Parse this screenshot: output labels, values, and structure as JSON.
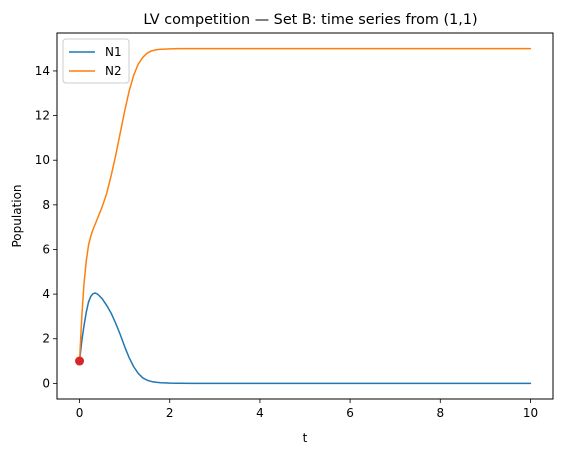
{
  "chart_data": {
    "type": "line",
    "title": "LV competition — Set B: time series from (1,1)",
    "xlabel": "t",
    "ylabel": "Population",
    "xlim": [
      -0.5,
      10.5
    ],
    "ylim": [
      -0.7,
      15.7
    ],
    "x_ticks": [
      0,
      2,
      4,
      6,
      8,
      10
    ],
    "y_ticks": [
      0,
      2,
      4,
      6,
      8,
      10,
      12,
      14
    ],
    "grid": false,
    "legend_position": "top-left",
    "series": [
      {
        "name": "N1",
        "color": "#1f77b4",
        "x": [
          0,
          0.05,
          0.1,
          0.15,
          0.2,
          0.25,
          0.3,
          0.35,
          0.4,
          0.5,
          0.6,
          0.7,
          0.8,
          0.9,
          1.0,
          1.1,
          1.2,
          1.3,
          1.4,
          1.5,
          1.6,
          1.7,
          1.8,
          1.9,
          2.0,
          2.2,
          2.5,
          3,
          4,
          5,
          6,
          7,
          8,
          9,
          10
        ],
        "y": [
          1.0,
          1.9,
          2.6,
          3.2,
          3.65,
          3.9,
          4.02,
          4.05,
          4.0,
          3.8,
          3.5,
          3.15,
          2.7,
          2.2,
          1.65,
          1.15,
          0.75,
          0.45,
          0.25,
          0.14,
          0.08,
          0.05,
          0.03,
          0.02,
          0.01,
          0.005,
          0.002,
          0.0,
          0.0,
          0.0,
          0.0,
          0.0,
          0.0,
          0.0,
          0.0
        ]
      },
      {
        "name": "N2",
        "color": "#ff7f0e",
        "x": [
          0,
          0.05,
          0.1,
          0.15,
          0.2,
          0.25,
          0.3,
          0.4,
          0.5,
          0.6,
          0.7,
          0.8,
          0.9,
          1.0,
          1.1,
          1.2,
          1.3,
          1.4,
          1.5,
          1.6,
          1.7,
          1.8,
          1.9,
          2.0,
          2.2,
          2.5,
          3,
          4,
          5,
          6,
          7,
          8,
          9,
          10
        ],
        "y": [
          1.0,
          3.0,
          4.5,
          5.5,
          6.2,
          6.6,
          6.9,
          7.4,
          7.9,
          8.5,
          9.3,
          10.2,
          11.2,
          12.2,
          13.1,
          13.8,
          14.3,
          14.6,
          14.8,
          14.9,
          14.95,
          14.97,
          14.98,
          14.99,
          15.0,
          15.0,
          15.0,
          15.0,
          15.0,
          15.0,
          15.0,
          15.0,
          15.0,
          15.0
        ]
      }
    ],
    "markers": [
      {
        "x": 0,
        "y": 1.0,
        "color": "#d62728"
      }
    ]
  }
}
